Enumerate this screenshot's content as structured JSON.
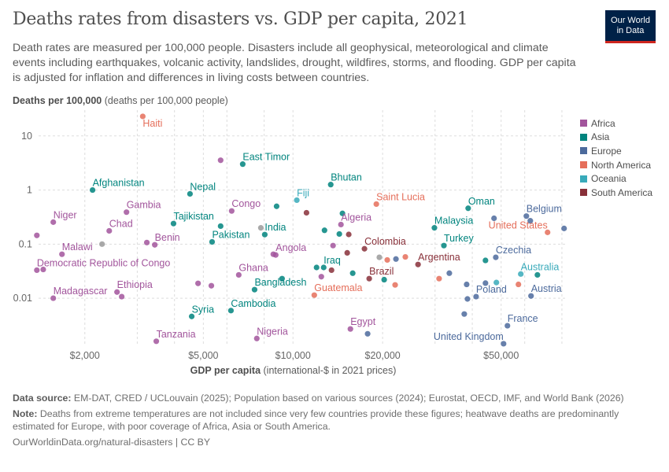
{
  "header": {
    "title": "Deaths rates from disasters vs. GDP per capita, 2021",
    "subtitle": "Death rates are measured per 100,000 people. Disasters include all geophysical, meteorological and climate events including earthquakes, volcanic activity, landslides, drought, wildfires, storms, and flooding. GDP per capita is adjusted for inflation and differences in living costs between countries.",
    "logo_line1": "Our World",
    "logo_line2": "in Data"
  },
  "chart_data": {
    "type": "scatter",
    "title": "Deaths rates from disasters vs. GDP per capita, 2021",
    "ylabel_bold": "Deaths per 100,000",
    "ylabel_rest": "(deaths per 100,000 people)",
    "xlabel_bold": "GDP per capita",
    "xlabel_rest": "(international-$ in 2021 prices)",
    "xscale": "log",
    "yscale": "log",
    "xlim": [
      1300,
      83000
    ],
    "ylim": [
      0.0013,
      30
    ],
    "xticks": [
      {
        "v": 2000,
        "label": "$2,000"
      },
      {
        "v": 5000,
        "label": "$5,000"
      },
      {
        "v": 10000,
        "label": "$10,000"
      },
      {
        "v": 20000,
        "label": "$20,000"
      },
      {
        "v": 50000,
        "label": "$50,000"
      }
    ],
    "yticks": [
      {
        "v": 10,
        "label": "10"
      },
      {
        "v": 1,
        "label": "1"
      },
      {
        "v": 0.1,
        "label": "0.1"
      },
      {
        "v": 0.01,
        "label": "0.01"
      }
    ],
    "legend_position": "right",
    "legend": [
      {
        "name": "Africa",
        "color": "#a2559c"
      },
      {
        "name": "Asia",
        "color": "#00847e"
      },
      {
        "name": "Europe",
        "color": "#4c6a9c"
      },
      {
        "name": "North America",
        "color": "#e56e5a"
      },
      {
        "name": "Oceania",
        "color": "#38aaba"
      },
      {
        "name": "South America",
        "color": "#883039"
      }
    ],
    "other_color": "#9a9a9a",
    "points": [
      {
        "x": 3130,
        "y": 23,
        "r": "North America",
        "label": "Haiti"
      },
      {
        "x": 5715,
        "y": 3.55,
        "r": "Africa"
      },
      {
        "x": 6780,
        "y": 3.01,
        "r": "Asia",
        "label": "East Timor"
      },
      {
        "x": 2123,
        "y": 1.0,
        "r": "Asia",
        "label": "Afghanistan"
      },
      {
        "x": 4510,
        "y": 0.85,
        "r": "Asia",
        "label": "Nepal"
      },
      {
        "x": 2760,
        "y": 0.39,
        "r": "Africa",
        "label": "Gambia"
      },
      {
        "x": 6225,
        "y": 0.41,
        "r": "Africa",
        "label": "Congo"
      },
      {
        "x": 8810,
        "y": 0.5,
        "r": "Asia"
      },
      {
        "x": 10300,
        "y": 0.65,
        "r": "Oceania",
        "label": "Fiji"
      },
      {
        "x": 11100,
        "y": 0.38,
        "r": "South America"
      },
      {
        "x": 1567,
        "y": 0.255,
        "r": "Africa",
        "label": "Niger"
      },
      {
        "x": 3970,
        "y": 0.24,
        "r": "Asia",
        "label": "Tajikistan"
      },
      {
        "x": 5715,
        "y": 0.215,
        "r": "Asia"
      },
      {
        "x": 2415,
        "y": 0.176,
        "r": "Africa",
        "label": "Chad"
      },
      {
        "x": 7800,
        "y": 0.2,
        "r": "Other"
      },
      {
        "x": 8040,
        "y": 0.15,
        "r": "Asia",
        "label": "India"
      },
      {
        "x": 1380,
        "y": 0.145,
        "r": "Africa"
      },
      {
        "x": 5350,
        "y": 0.11,
        "r": "Asia",
        "label": "Pakistan"
      },
      {
        "x": 3435,
        "y": 0.097,
        "r": "Africa",
        "label": "Benin"
      },
      {
        "x": 3230,
        "y": 0.107,
        "r": "Africa"
      },
      {
        "x": 2285,
        "y": 0.1,
        "r": "Other"
      },
      {
        "x": 1676,
        "y": 0.065,
        "r": "Africa",
        "label": "Malawi"
      },
      {
        "x": 8750,
        "y": 0.063,
        "r": "Africa",
        "label": "Angola"
      },
      {
        "x": 8590,
        "y": 0.065,
        "r": "Africa"
      },
      {
        "x": 1380,
        "y": 0.033,
        "r": "Africa",
        "label": "Democratic Republic of Congo"
      },
      {
        "x": 1450,
        "y": 0.034,
        "r": "Africa"
      },
      {
        "x": 6575,
        "y": 0.027,
        "r": "Africa",
        "label": "Ghana"
      },
      {
        "x": 7430,
        "y": 0.0144,
        "r": "Asia",
        "label": "Bangladesh"
      },
      {
        "x": 4800,
        "y": 0.0188,
        "r": "Africa"
      },
      {
        "x": 5320,
        "y": 0.017,
        "r": "Africa"
      },
      {
        "x": 9190,
        "y": 0.023,
        "r": "Asia"
      },
      {
        "x": 2565,
        "y": 0.013,
        "r": "Africa",
        "label": "Ethiopia"
      },
      {
        "x": 2660,
        "y": 0.0107,
        "r": "Africa"
      },
      {
        "x": 1567,
        "y": 0.01,
        "r": "Africa",
        "label": "Madagascar"
      },
      {
        "x": 4570,
        "y": 0.0046,
        "r": "Asia",
        "label": "Syria"
      },
      {
        "x": 6190,
        "y": 0.0059,
        "r": "Asia",
        "label": "Cambodia"
      },
      {
        "x": 3475,
        "y": 0.0016,
        "r": "Africa",
        "label": "Tanzania"
      },
      {
        "x": 7560,
        "y": 0.0018,
        "r": "Africa",
        "label": "Nigeria"
      },
      {
        "x": 13390,
        "y": 1.26,
        "r": "Asia",
        "label": "Bhutan"
      },
      {
        "x": 19050,
        "y": 0.55,
        "r": "North America",
        "label": "Saint Lucia"
      },
      {
        "x": 14660,
        "y": 0.37,
        "r": "Asia"
      },
      {
        "x": 14490,
        "y": 0.23,
        "r": "Africa",
        "label": "Algeria"
      },
      {
        "x": 12760,
        "y": 0.18,
        "r": "Asia"
      },
      {
        "x": 14310,
        "y": 0.154,
        "r": "Asia"
      },
      {
        "x": 15390,
        "y": 0.151,
        "r": "South America"
      },
      {
        "x": 13630,
        "y": 0.094,
        "r": "Africa"
      },
      {
        "x": 15210,
        "y": 0.069,
        "r": "South America"
      },
      {
        "x": 17380,
        "y": 0.082,
        "r": "South America",
        "label": "Colombia"
      },
      {
        "x": 19500,
        "y": 0.057,
        "r": "Other"
      },
      {
        "x": 20730,
        "y": 0.051,
        "r": "North America"
      },
      {
        "x": 22170,
        "y": 0.053,
        "r": "Europe"
      },
      {
        "x": 23840,
        "y": 0.058,
        "r": "North America"
      },
      {
        "x": 26300,
        "y": 0.042,
        "r": "South America",
        "label": "Argentina"
      },
      {
        "x": 12000,
        "y": 0.037,
        "r": "Asia"
      },
      {
        "x": 12680,
        "y": 0.037,
        "r": "Asia",
        "label": "Iraq"
      },
      {
        "x": 13470,
        "y": 0.033,
        "r": "South America"
      },
      {
        "x": 12450,
        "y": 0.025,
        "r": "Africa"
      },
      {
        "x": 15870,
        "y": 0.029,
        "r": "Asia"
      },
      {
        "x": 18030,
        "y": 0.023,
        "r": "South America",
        "label": "Brazil"
      },
      {
        "x": 20240,
        "y": 0.022,
        "r": "Asia"
      },
      {
        "x": 22030,
        "y": 0.0176,
        "r": "North America"
      },
      {
        "x": 11790,
        "y": 0.0114,
        "r": "North America",
        "label": "Guatemala"
      },
      {
        "x": 15590,
        "y": 0.0027,
        "r": "Africa",
        "label": "Egypt"
      },
      {
        "x": 17810,
        "y": 0.0022,
        "r": "Europe"
      },
      {
        "x": 29850,
        "y": 0.2,
        "r": "Asia",
        "label": "Malaysia"
      },
      {
        "x": 38750,
        "y": 0.46,
        "r": "Asia",
        "label": "Oman"
      },
      {
        "x": 32120,
        "y": 0.094,
        "r": "Asia",
        "label": "Turkey"
      },
      {
        "x": 47330,
        "y": 0.3,
        "r": "Europe"
      },
      {
        "x": 60770,
        "y": 0.33,
        "r": "Europe",
        "label": "Belgium"
      },
      {
        "x": 62650,
        "y": 0.27,
        "r": "Europe"
      },
      {
        "x": 71600,
        "y": 0.165,
        "r": "North America",
        "label": "United States",
        "anchor": "left"
      },
      {
        "x": 81350,
        "y": 0.195,
        "r": "Europe"
      },
      {
        "x": 47970,
        "y": 0.057,
        "r": "Europe",
        "label": "Czechia"
      },
      {
        "x": 44300,
        "y": 0.05,
        "r": "Asia"
      },
      {
        "x": 30950,
        "y": 0.023,
        "r": "North America"
      },
      {
        "x": 33500,
        "y": 0.029,
        "r": "Europe"
      },
      {
        "x": 38300,
        "y": 0.018,
        "r": "Europe"
      },
      {
        "x": 44300,
        "y": 0.019,
        "r": "Europe"
      },
      {
        "x": 48200,
        "y": 0.0195,
        "r": "Oceania"
      },
      {
        "x": 58200,
        "y": 0.028,
        "r": "Oceania",
        "label": "Australia"
      },
      {
        "x": 66200,
        "y": 0.027,
        "r": "Asia"
      },
      {
        "x": 57150,
        "y": 0.018,
        "r": "North America"
      },
      {
        "x": 41200,
        "y": 0.0107,
        "r": "Europe",
        "label": "Poland"
      },
      {
        "x": 38540,
        "y": 0.0097,
        "r": "Europe"
      },
      {
        "x": 63000,
        "y": 0.011,
        "r": "Europe",
        "label": "Austria"
      },
      {
        "x": 37600,
        "y": 0.0051,
        "r": "Europe"
      },
      {
        "x": 52500,
        "y": 0.0031,
        "r": "Europe",
        "label": "France"
      },
      {
        "x": 50950,
        "y": 0.00144,
        "r": "Europe",
        "label": "United Kingdom",
        "anchor": "left"
      }
    ]
  },
  "footer": {
    "source_label": "Data source:",
    "source_text": "EM-DAT, CRED / UCLouvain (2025); Population based on various sources (2024); Eurostat, OECD, IMF, and World Bank (2026)",
    "note_label": "Note:",
    "note_text": "Deaths from extreme temperatures are not included since very few countries provide these figures; heatwave deaths are predominantly estimated for Europe, with poor coverage of Africa, Asia or South America.",
    "url": "OurWorldinData.org/natural-disasters | CC BY"
  }
}
